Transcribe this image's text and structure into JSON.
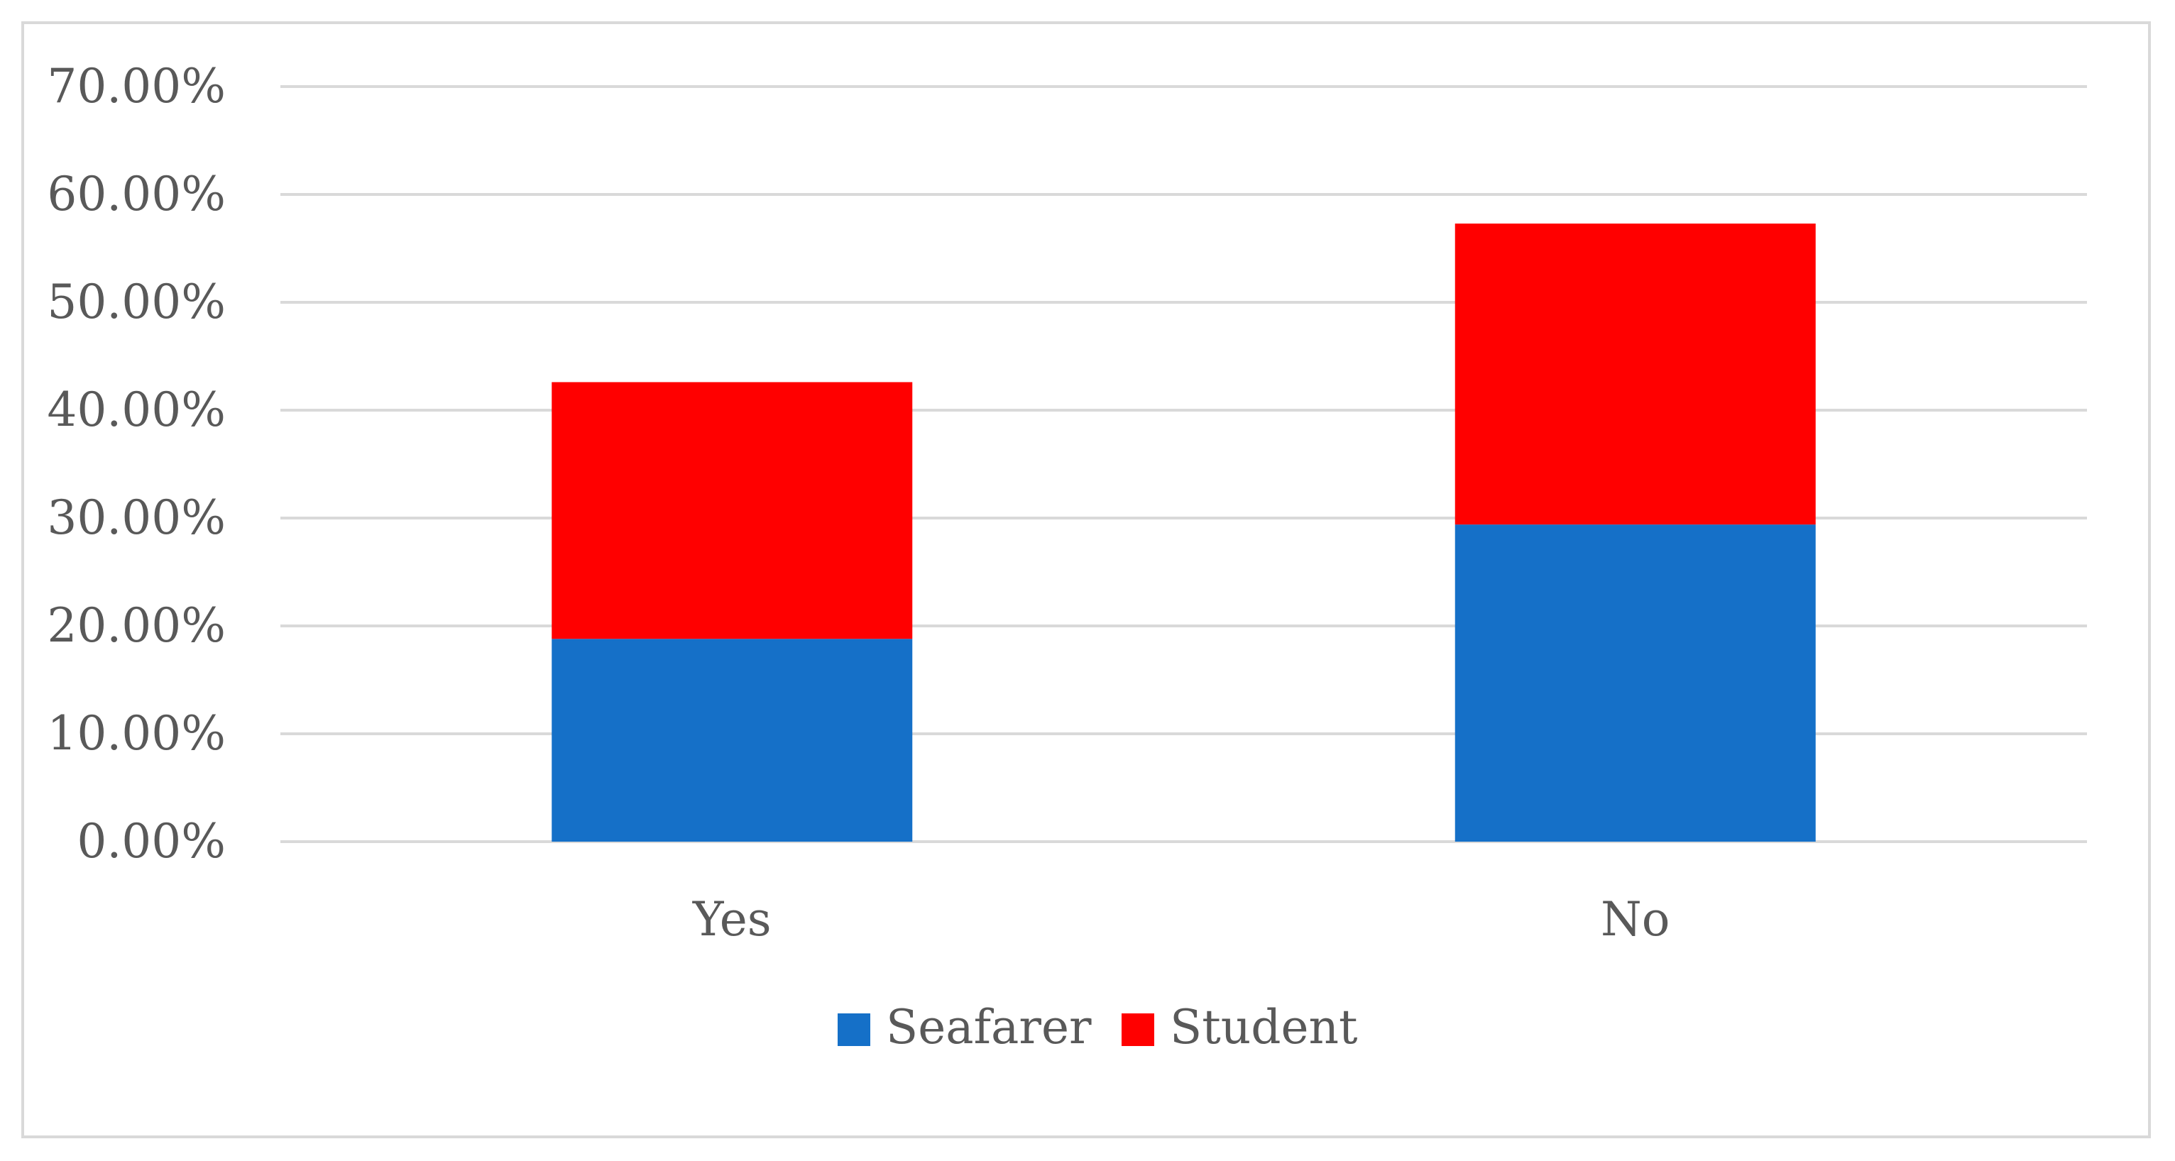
{
  "chart_data": {
    "type": "bar",
    "stacked": true,
    "categories": [
      "Yes",
      "No"
    ],
    "series": [
      {
        "name": "Seafarer",
        "values": [
          18.8,
          29.4
        ],
        "color": "#1570c8"
      },
      {
        "name": "Student",
        "values": [
          23.8,
          27.9
        ],
        "color": "#ff0000"
      }
    ],
    "ylim": [
      0,
      70
    ],
    "yticks": [
      {
        "value": 0,
        "label": "0.00%"
      },
      {
        "value": 10,
        "label": "10.00%"
      },
      {
        "value": 20,
        "label": "20.00%"
      },
      {
        "value": 30,
        "label": "30.00%"
      },
      {
        "value": 40,
        "label": "40.00%"
      },
      {
        "value": 50,
        "label": "50.00%"
      },
      {
        "value": 60,
        "label": "60.00%"
      },
      {
        "value": 70,
        "label": "70.00%"
      }
    ],
    "title": "",
    "xlabel": "",
    "ylabel": "",
    "grid": true,
    "legend_position": "bottom"
  }
}
